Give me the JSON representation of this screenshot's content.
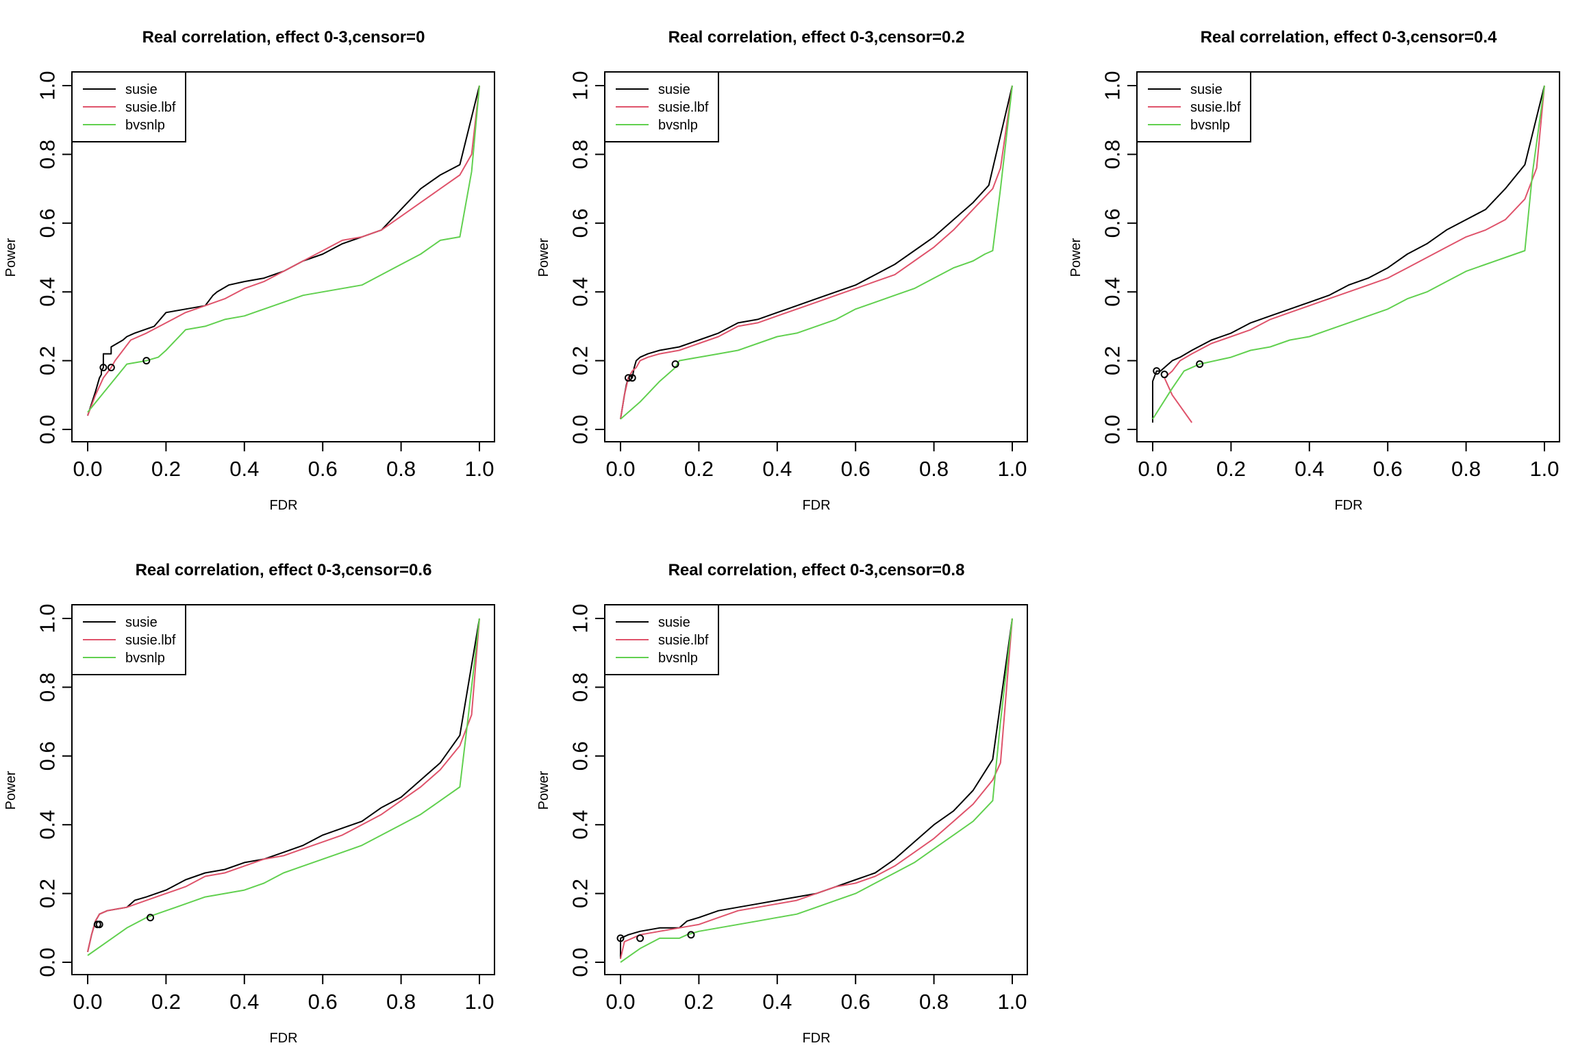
{
  "colors": {
    "susie": "#000000",
    "susie.lbf": "#DF536B",
    "bvsnlp": "#61D04F"
  },
  "chart_data": [
    {
      "type": "line",
      "title": "Real correlation, effect 0-3,censor=0",
      "xlabel": "FDR",
      "ylabel": "Power",
      "xlim": [
        0,
        1
      ],
      "ylim": [
        0,
        1
      ],
      "xticks": [
        "0.0",
        "0.2",
        "0.4",
        "0.6",
        "0.8",
        "1.0"
      ],
      "yticks": [
        "0.0",
        "0.2",
        "0.4",
        "0.6",
        "0.8",
        "1.0"
      ],
      "legend": {
        "position": "top-left",
        "entries": [
          "susie",
          "susie.lbf",
          "bvsnlp"
        ]
      },
      "series": [
        {
          "name": "susie",
          "x": [
            0.0,
            0.02,
            0.03,
            0.035,
            0.035,
            0.04,
            0.04,
            0.06,
            0.06,
            0.09,
            0.1,
            0.12,
            0.17,
            0.2,
            0.25,
            0.3,
            0.32,
            0.33,
            0.36,
            0.4,
            0.45,
            0.5,
            0.55,
            0.6,
            0.65,
            0.7,
            0.75,
            0.8,
            0.85,
            0.9,
            0.95,
            1.0
          ],
          "y": [
            0.04,
            0.11,
            0.15,
            0.16,
            0.17,
            0.18,
            0.22,
            0.22,
            0.24,
            0.26,
            0.27,
            0.28,
            0.3,
            0.34,
            0.35,
            0.36,
            0.39,
            0.4,
            0.42,
            0.43,
            0.44,
            0.46,
            0.49,
            0.51,
            0.54,
            0.56,
            0.58,
            0.64,
            0.7,
            0.74,
            0.77,
            1.0
          ]
        },
        {
          "name": "susie.lbf",
          "x": [
            0.0,
            0.02,
            0.04,
            0.06,
            0.07,
            0.09,
            0.11,
            0.15,
            0.2,
            0.25,
            0.3,
            0.35,
            0.4,
            0.45,
            0.5,
            0.55,
            0.6,
            0.65,
            0.7,
            0.75,
            0.8,
            0.85,
            0.9,
            0.95,
            0.98,
            1.0
          ],
          "y": [
            0.04,
            0.1,
            0.15,
            0.18,
            0.2,
            0.23,
            0.26,
            0.28,
            0.31,
            0.34,
            0.36,
            0.38,
            0.41,
            0.43,
            0.46,
            0.49,
            0.52,
            0.55,
            0.56,
            0.58,
            0.62,
            0.66,
            0.7,
            0.74,
            0.8,
            1.0
          ]
        },
        {
          "name": "bvsnlp",
          "x": [
            0.0,
            0.05,
            0.1,
            0.15,
            0.18,
            0.2,
            0.25,
            0.3,
            0.35,
            0.4,
            0.45,
            0.5,
            0.55,
            0.6,
            0.65,
            0.7,
            0.75,
            0.8,
            0.85,
            0.9,
            0.95,
            0.98,
            1.0
          ],
          "y": [
            0.05,
            0.12,
            0.19,
            0.2,
            0.21,
            0.23,
            0.29,
            0.3,
            0.32,
            0.33,
            0.35,
            0.37,
            0.39,
            0.4,
            0.41,
            0.42,
            0.45,
            0.48,
            0.51,
            0.55,
            0.56,
            0.75,
            1.0
          ]
        }
      ],
      "markers": [
        {
          "x": 0.04,
          "y": 0.18
        },
        {
          "x": 0.06,
          "y": 0.18
        },
        {
          "x": 0.15,
          "y": 0.2
        }
      ]
    },
    {
      "type": "line",
      "title": "Real correlation, effect 0-3,censor=0.2",
      "xlabel": "FDR",
      "ylabel": "Power",
      "xlim": [
        0,
        1
      ],
      "ylim": [
        0,
        1
      ],
      "xticks": [
        "0.0",
        "0.2",
        "0.4",
        "0.6",
        "0.8",
        "1.0"
      ],
      "yticks": [
        "0.0",
        "0.2",
        "0.4",
        "0.6",
        "0.8",
        "1.0"
      ],
      "legend": {
        "position": "top-left",
        "entries": [
          "susie",
          "susie.lbf",
          "bvsnlp"
        ]
      },
      "series": [
        {
          "name": "susie",
          "x": [
            0.0,
            0.01,
            0.015,
            0.02,
            0.025,
            0.03,
            0.035,
            0.04,
            0.05,
            0.07,
            0.1,
            0.15,
            0.2,
            0.25,
            0.3,
            0.35,
            0.4,
            0.45,
            0.5,
            0.55,
            0.6,
            0.65,
            0.7,
            0.75,
            0.8,
            0.85,
            0.9,
            0.94,
            1.0
          ],
          "y": [
            0.03,
            0.1,
            0.13,
            0.15,
            0.16,
            0.15,
            0.18,
            0.2,
            0.21,
            0.22,
            0.23,
            0.24,
            0.26,
            0.28,
            0.31,
            0.32,
            0.34,
            0.36,
            0.38,
            0.4,
            0.42,
            0.45,
            0.48,
            0.52,
            0.56,
            0.61,
            0.66,
            0.71,
            1.0
          ]
        },
        {
          "name": "susie.lbf",
          "x": [
            0.0,
            0.01,
            0.02,
            0.03,
            0.04,
            0.05,
            0.07,
            0.1,
            0.15,
            0.2,
            0.25,
            0.3,
            0.35,
            0.4,
            0.45,
            0.5,
            0.55,
            0.6,
            0.65,
            0.7,
            0.75,
            0.8,
            0.85,
            0.9,
            0.95,
            0.97,
            1.0
          ],
          "y": [
            0.03,
            0.1,
            0.15,
            0.17,
            0.18,
            0.2,
            0.21,
            0.22,
            0.23,
            0.25,
            0.27,
            0.3,
            0.31,
            0.33,
            0.35,
            0.37,
            0.39,
            0.41,
            0.43,
            0.45,
            0.49,
            0.53,
            0.58,
            0.64,
            0.7,
            0.76,
            1.0
          ]
        },
        {
          "name": "bvsnlp",
          "x": [
            0.0,
            0.05,
            0.1,
            0.14,
            0.15,
            0.2,
            0.25,
            0.3,
            0.35,
            0.4,
            0.45,
            0.5,
            0.55,
            0.6,
            0.65,
            0.7,
            0.75,
            0.8,
            0.85,
            0.9,
            0.93,
            0.95,
            0.97,
            1.0
          ],
          "y": [
            0.03,
            0.08,
            0.14,
            0.18,
            0.2,
            0.21,
            0.22,
            0.23,
            0.25,
            0.27,
            0.28,
            0.3,
            0.32,
            0.35,
            0.37,
            0.39,
            0.41,
            0.44,
            0.47,
            0.49,
            0.51,
            0.52,
            0.7,
            1.0
          ]
        }
      ],
      "markers": [
        {
          "x": 0.02,
          "y": 0.15
        },
        {
          "x": 0.03,
          "y": 0.15
        },
        {
          "x": 0.14,
          "y": 0.19
        }
      ]
    },
    {
      "type": "line",
      "title": "Real correlation, effect 0-3,censor=0.4",
      "xlabel": "FDR",
      "ylabel": "Power",
      "xlim": [
        0,
        1
      ],
      "ylim": [
        0,
        1
      ],
      "xticks": [
        "0.0",
        "0.2",
        "0.4",
        "0.6",
        "0.8",
        "1.0"
      ],
      "yticks": [
        "0.0",
        "0.2",
        "0.4",
        "0.6",
        "0.8",
        "1.0"
      ],
      "legend": {
        "position": "top-left",
        "entries": [
          "susie",
          "susie.lbf",
          "bvsnlp"
        ]
      },
      "series": [
        {
          "name": "susie",
          "x": [
            0.0,
            0.0,
            0.01,
            0.02,
            0.03,
            0.05,
            0.07,
            0.1,
            0.15,
            0.2,
            0.25,
            0.3,
            0.35,
            0.4,
            0.45,
            0.5,
            0.55,
            0.6,
            0.65,
            0.7,
            0.75,
            0.8,
            0.85,
            0.9,
            0.95,
            1.0
          ],
          "y": [
            0.02,
            0.14,
            0.17,
            0.17,
            0.18,
            0.2,
            0.21,
            0.23,
            0.26,
            0.28,
            0.31,
            0.33,
            0.35,
            0.37,
            0.39,
            0.42,
            0.44,
            0.47,
            0.51,
            0.54,
            0.58,
            0.61,
            0.64,
            0.7,
            0.77,
            1.0
          ]
        },
        {
          "name": "susie.lbf",
          "x": [
            0.1,
            0.05,
            0.03,
            0.05,
            0.07,
            0.1,
            0.15,
            0.2,
            0.25,
            0.3,
            0.35,
            0.4,
            0.45,
            0.5,
            0.55,
            0.6,
            0.65,
            0.7,
            0.75,
            0.8,
            0.85,
            0.9,
            0.95,
            0.98,
            1.0
          ],
          "y": [
            0.02,
            0.1,
            0.15,
            0.17,
            0.2,
            0.22,
            0.25,
            0.27,
            0.29,
            0.32,
            0.34,
            0.36,
            0.38,
            0.4,
            0.42,
            0.44,
            0.47,
            0.5,
            0.53,
            0.56,
            0.58,
            0.61,
            0.67,
            0.76,
            1.0
          ]
        },
        {
          "name": "bvsnlp",
          "x": [
            0.0,
            0.05,
            0.08,
            0.12,
            0.2,
            0.25,
            0.3,
            0.35,
            0.4,
            0.45,
            0.5,
            0.55,
            0.6,
            0.65,
            0.7,
            0.75,
            0.8,
            0.85,
            0.9,
            0.95,
            0.97,
            1.0
          ],
          "y": [
            0.03,
            0.12,
            0.17,
            0.19,
            0.21,
            0.23,
            0.24,
            0.26,
            0.27,
            0.29,
            0.31,
            0.33,
            0.35,
            0.38,
            0.4,
            0.43,
            0.46,
            0.48,
            0.5,
            0.52,
            0.75,
            1.0
          ]
        }
      ],
      "markers": [
        {
          "x": 0.01,
          "y": 0.17
        },
        {
          "x": 0.03,
          "y": 0.16
        },
        {
          "x": 0.12,
          "y": 0.19
        }
      ]
    },
    {
      "type": "line",
      "title": "Real correlation, effect 0-3,censor=0.6",
      "xlabel": "FDR",
      "ylabel": "Power",
      "xlim": [
        0,
        1
      ],
      "ylim": [
        0,
        1
      ],
      "xticks": [
        "0.0",
        "0.2",
        "0.4",
        "0.6",
        "0.8",
        "1.0"
      ],
      "yticks": [
        "0.0",
        "0.2",
        "0.4",
        "0.6",
        "0.8",
        "1.0"
      ],
      "legend": {
        "position": "top-left",
        "entries": [
          "susie",
          "susie.lbf",
          "bvsnlp"
        ]
      },
      "series": [
        {
          "name": "susie",
          "x": [
            0.0,
            0.01,
            0.02,
            0.03,
            0.05,
            0.1,
            0.12,
            0.15,
            0.2,
            0.25,
            0.3,
            0.35,
            0.4,
            0.45,
            0.5,
            0.55,
            0.6,
            0.65,
            0.7,
            0.75,
            0.8,
            0.85,
            0.9,
            0.95,
            1.0
          ],
          "y": [
            0.03,
            0.08,
            0.12,
            0.14,
            0.15,
            0.16,
            0.18,
            0.19,
            0.21,
            0.24,
            0.26,
            0.27,
            0.29,
            0.3,
            0.32,
            0.34,
            0.37,
            0.39,
            0.41,
            0.45,
            0.48,
            0.53,
            0.58,
            0.66,
            1.0
          ]
        },
        {
          "name": "susie.lbf",
          "x": [
            0.0,
            0.01,
            0.02,
            0.03,
            0.05,
            0.1,
            0.15,
            0.2,
            0.25,
            0.3,
            0.35,
            0.4,
            0.45,
            0.5,
            0.55,
            0.6,
            0.65,
            0.7,
            0.75,
            0.8,
            0.85,
            0.9,
            0.95,
            0.98,
            1.0
          ],
          "y": [
            0.03,
            0.08,
            0.12,
            0.14,
            0.15,
            0.16,
            0.18,
            0.2,
            0.22,
            0.25,
            0.26,
            0.28,
            0.3,
            0.31,
            0.33,
            0.35,
            0.37,
            0.4,
            0.43,
            0.47,
            0.51,
            0.56,
            0.63,
            0.72,
            1.0
          ]
        },
        {
          "name": "bvsnlp",
          "x": [
            0.0,
            0.05,
            0.1,
            0.15,
            0.2,
            0.25,
            0.3,
            0.35,
            0.4,
            0.45,
            0.5,
            0.55,
            0.6,
            0.65,
            0.7,
            0.75,
            0.8,
            0.85,
            0.9,
            0.95,
            0.97,
            1.0
          ],
          "y": [
            0.02,
            0.06,
            0.1,
            0.13,
            0.15,
            0.17,
            0.19,
            0.2,
            0.21,
            0.23,
            0.26,
            0.28,
            0.3,
            0.32,
            0.34,
            0.37,
            0.4,
            0.43,
            0.47,
            0.51,
            0.7,
            1.0
          ]
        }
      ],
      "markers": [
        {
          "x": 0.025,
          "y": 0.11
        },
        {
          "x": 0.03,
          "y": 0.11
        },
        {
          "x": 0.16,
          "y": 0.13
        }
      ]
    },
    {
      "type": "line",
      "title": "Real correlation, effect 0-3,censor=0.8",
      "xlabel": "FDR",
      "ylabel": "Power",
      "xlim": [
        0,
        1
      ],
      "ylim": [
        0,
        1
      ],
      "xticks": [
        "0.0",
        "0.2",
        "0.4",
        "0.6",
        "0.8",
        "1.0"
      ],
      "yticks": [
        "0.0",
        "0.2",
        "0.4",
        "0.6",
        "0.8",
        "1.0"
      ],
      "legend": {
        "position": "top-left",
        "entries": [
          "susie",
          "susie.lbf",
          "bvsnlp"
        ]
      },
      "series": [
        {
          "name": "susie",
          "x": [
            0.0,
            0.0,
            0.02,
            0.05,
            0.1,
            0.15,
            0.17,
            0.2,
            0.25,
            0.3,
            0.35,
            0.4,
            0.45,
            0.5,
            0.55,
            0.6,
            0.65,
            0.7,
            0.75,
            0.8,
            0.85,
            0.9,
            0.95,
            1.0
          ],
          "y": [
            0.01,
            0.07,
            0.08,
            0.09,
            0.1,
            0.1,
            0.12,
            0.13,
            0.15,
            0.16,
            0.17,
            0.18,
            0.19,
            0.2,
            0.22,
            0.24,
            0.26,
            0.3,
            0.35,
            0.4,
            0.44,
            0.5,
            0.59,
            1.0
          ]
        },
        {
          "name": "susie.lbf",
          "x": [
            0.0,
            0.01,
            0.03,
            0.05,
            0.1,
            0.15,
            0.2,
            0.25,
            0.3,
            0.35,
            0.4,
            0.45,
            0.5,
            0.55,
            0.6,
            0.65,
            0.7,
            0.75,
            0.8,
            0.85,
            0.9,
            0.95,
            0.97,
            1.0
          ],
          "y": [
            0.01,
            0.06,
            0.07,
            0.08,
            0.09,
            0.1,
            0.11,
            0.13,
            0.15,
            0.16,
            0.17,
            0.18,
            0.2,
            0.22,
            0.23,
            0.25,
            0.28,
            0.32,
            0.36,
            0.41,
            0.46,
            0.53,
            0.58,
            1.0
          ]
        },
        {
          "name": "bvsnlp",
          "x": [
            0.0,
            0.05,
            0.1,
            0.15,
            0.17,
            0.2,
            0.25,
            0.3,
            0.35,
            0.4,
            0.45,
            0.5,
            0.55,
            0.6,
            0.65,
            0.7,
            0.75,
            0.8,
            0.85,
            0.9,
            0.95,
            0.97,
            1.0
          ],
          "y": [
            0.0,
            0.04,
            0.07,
            0.07,
            0.08,
            0.09,
            0.1,
            0.11,
            0.12,
            0.13,
            0.14,
            0.16,
            0.18,
            0.2,
            0.23,
            0.26,
            0.29,
            0.33,
            0.37,
            0.41,
            0.47,
            0.7,
            1.0
          ]
        }
      ],
      "markers": [
        {
          "x": 0.0,
          "y": 0.07
        },
        {
          "x": 0.05,
          "y": 0.07
        },
        {
          "x": 0.18,
          "y": 0.08
        }
      ]
    }
  ]
}
